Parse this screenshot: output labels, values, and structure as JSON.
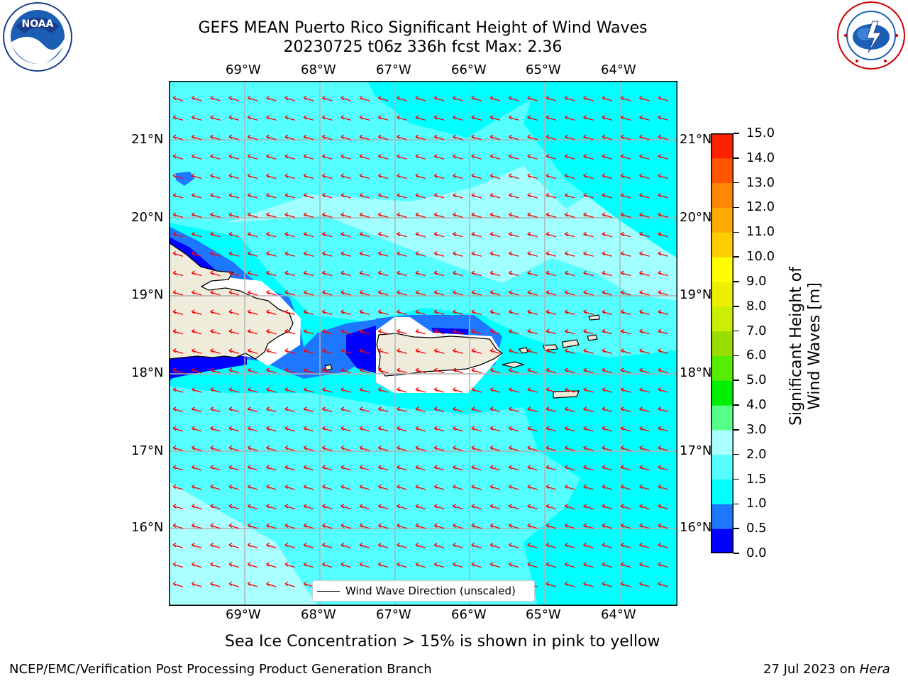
{
  "title_line1": "GEFS MEAN Puerto Rico Significant Height of Wind Waves",
  "title_line2": "20230725 t06z 336h fcst   Max: 2.36",
  "logos": {
    "left": {
      "icon": "noaa-logo",
      "text": "NOAA",
      "ring_text": "NATIONAL OCEANIC AND ATMOSPHERIC ADMINISTRATION · U.S. DEPARTMENT OF COMMERCE"
    },
    "right": {
      "icon": "nws-logo",
      "ring_text": "NATIONAL WEATHER SERVICE"
    }
  },
  "lon_labels": [
    "69°W",
    "68°W",
    "67°W",
    "66°W",
    "65°W",
    "64°W"
  ],
  "lat_labels": [
    "21°N",
    "20°N",
    "19°N",
    "18°N",
    "17°N",
    "16°N"
  ],
  "legend": {
    "label": "Wind Wave Direction (unscaled)"
  },
  "colorbar": {
    "label": "Significant Height of Wind Waves [m]",
    "ticks": [
      "0.0",
      "0.5",
      "1.0",
      "1.5",
      "2.0",
      "3.0",
      "4.0",
      "5.0",
      "6.0",
      "7.0",
      "8.0",
      "9.0",
      "10.0",
      "11.0",
      "12.0",
      "13.0",
      "14.0",
      "15.0"
    ],
    "colors": [
      "#0000ff",
      "#1e78ff",
      "#00ffff",
      "#55ffff",
      "#aaffff",
      "#55ff88",
      "#00ee00",
      "#55ee00",
      "#99dd00",
      "#ccee00",
      "#eeee00",
      "#ffff00",
      "#ffcc00",
      "#ffaa00",
      "#ff8800",
      "#ff5500",
      "#ff2200"
    ]
  },
  "sea_ice_note": "Sea Ice Concentration > 15% is shown in pink to yellow",
  "footer_left": "NCEP/EMC/Verification Post Processing Product Generation Branch",
  "footer_date": "27 Jul 2023 on ",
  "footer_host": "Hera",
  "map_colors": {
    "land": "#f0ecdc",
    "arrow": "#ff0000",
    "grid": "#b0b0b0"
  }
}
